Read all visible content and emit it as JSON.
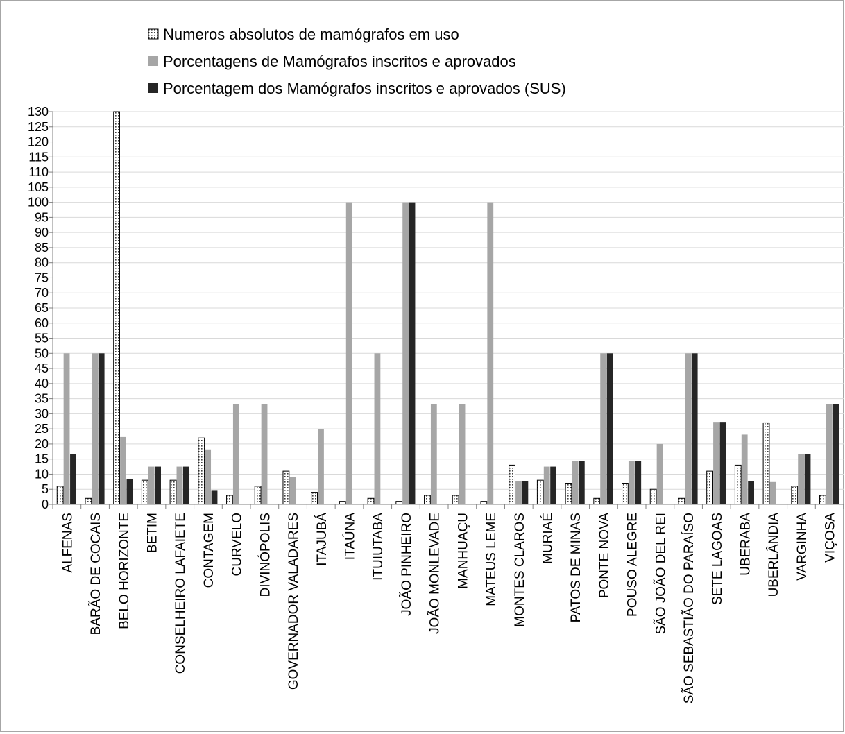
{
  "chart_data": {
    "type": "bar",
    "title": "",
    "xlabel": "",
    "ylabel": "",
    "ylim": [
      0,
      130
    ],
    "ytick_step": 5,
    "grid": true,
    "legend_position": "top",
    "categories": [
      "ALFENAS",
      "BARÃO DE COCAIS",
      "BELO HORIZONTE",
      "BETIM",
      "CONSELHEIRO LAFAIETE",
      "CONTAGEM",
      "CURVELO",
      "DIVINÓPOLIS",
      "GOVERNADOR VALADARES",
      "ITAJUBÁ",
      "ITAÚNA",
      "ITUIUTABA",
      "JOÃO PINHEIRO",
      "JOÃO MONLEVADE",
      "MANHUAÇU",
      "MATEUS LEME",
      "MONTES CLAROS",
      "MURIAÉ",
      "PATOS DE MINAS",
      "PONTE NOVA",
      "POUSO ALEGRE",
      "SÃO JOÃO DEL REI",
      "SÃO SEBASTIÃO DO PARAÍSO",
      "SETE LAGOAS",
      "UBERABA",
      "UBERLÂNDIA",
      "VARGINHA",
      "VIÇOSA"
    ],
    "series": [
      {
        "name": "Numeros absolutos de mamógrafos em uso",
        "color": "#ffffff",
        "pattern": "dotted",
        "values": [
          6,
          2,
          130,
          8,
          8,
          22,
          3,
          6,
          11,
          4,
          1,
          2,
          1,
          3,
          3,
          1,
          13,
          8,
          7,
          2,
          7,
          5,
          2,
          11,
          13,
          27,
          6,
          3
        ]
      },
      {
        "name": "Porcentagens de Mamógrafos inscritos e aprovados",
        "color": "#a6a6a6",
        "pattern": "solid",
        "values": [
          50,
          50,
          22.3,
          12.5,
          12.5,
          18.2,
          33.3,
          33.3,
          9.1,
          25,
          100,
          50,
          100,
          33.3,
          33.3,
          100,
          7.7,
          12.5,
          14.3,
          50,
          14.3,
          20,
          50,
          27.3,
          23.1,
          7.4,
          16.7,
          33.3
        ]
      },
      {
        "name": "Porcentagem dos Mamógrafos inscritos e aprovados (SUS)",
        "color": "#262626",
        "pattern": "solid",
        "values": [
          16.7,
          50,
          8.5,
          12.5,
          12.5,
          4.5,
          0,
          0,
          0,
          0,
          0,
          0,
          100,
          0,
          0,
          0,
          7.7,
          12.5,
          14.3,
          50,
          14.3,
          0,
          50,
          27.3,
          7.7,
          0,
          16.7,
          33.3
        ]
      }
    ]
  }
}
